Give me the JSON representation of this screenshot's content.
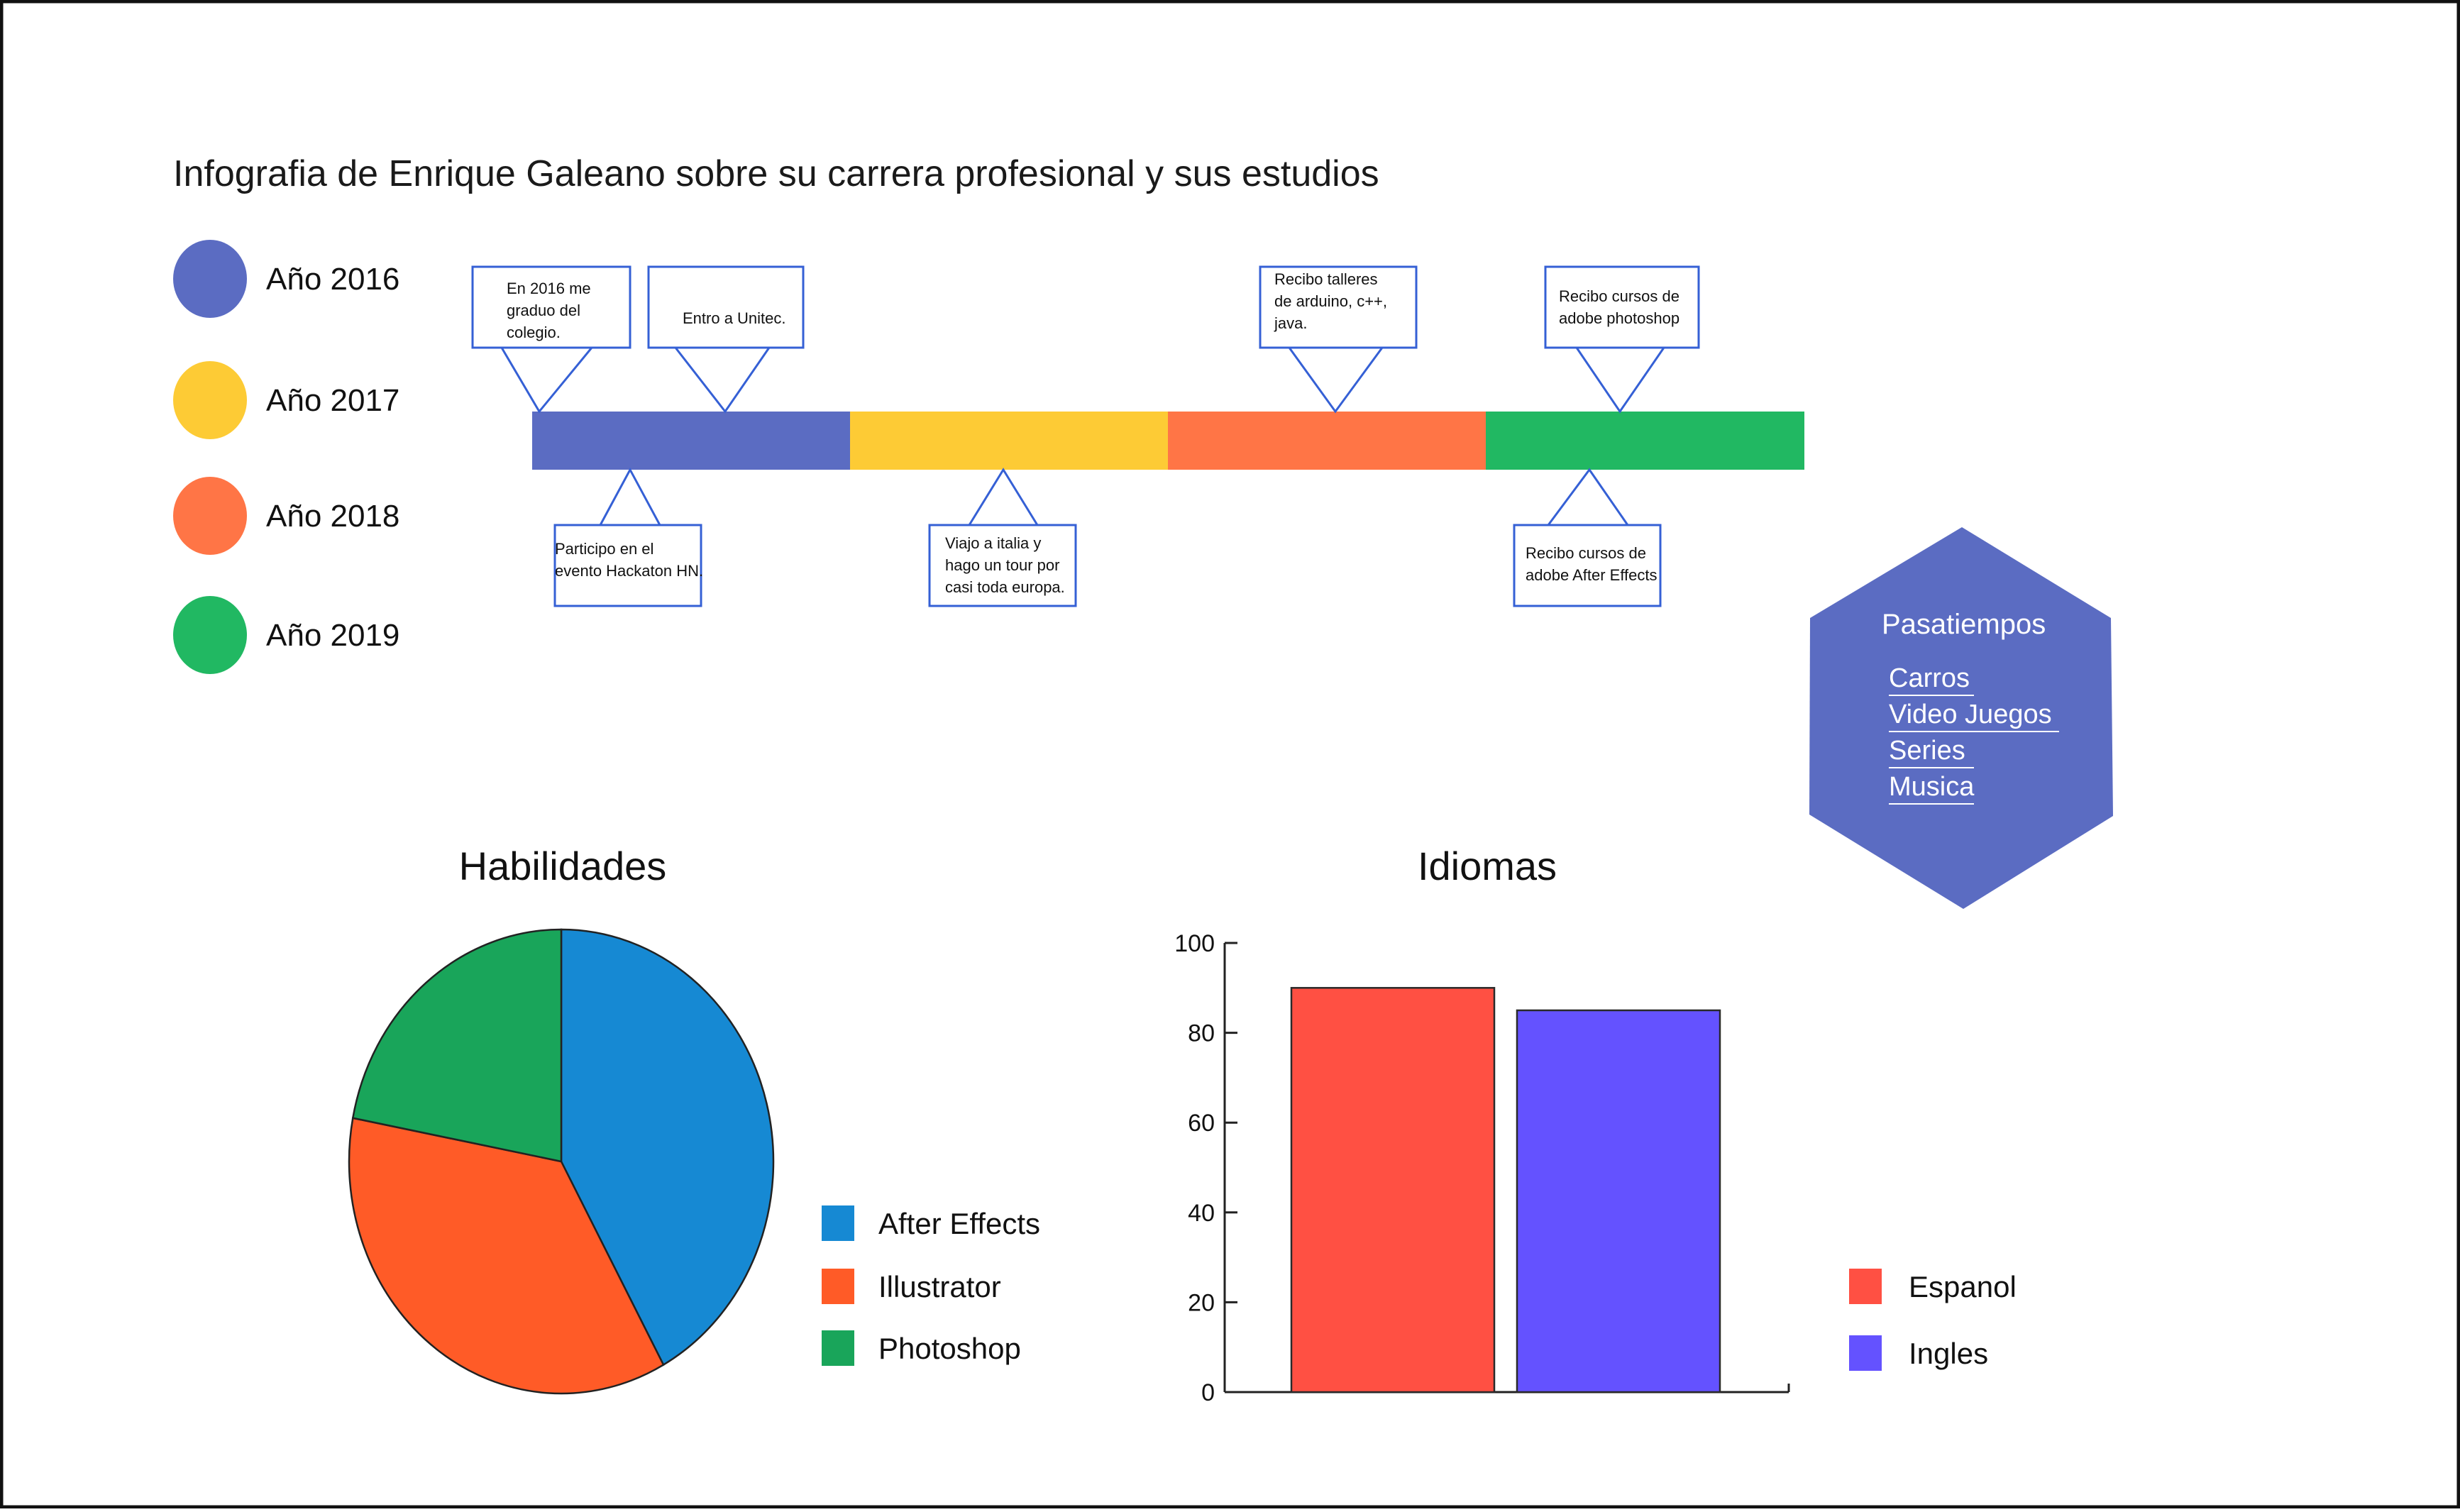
{
  "title": "Infografia de Enrique Galeano sobre su carrera profesional y sus estudios",
  "legend_years": [
    {
      "label": "Año 2016",
      "color": "#5B6CC2"
    },
    {
      "label": "Año 2017",
      "color": "#FDCB35"
    },
    {
      "label": "Año 2018",
      "color": "#FF7546"
    },
    {
      "label": "Año 2019",
      "color": "#21B862"
    }
  ],
  "timeline": {
    "segment_colors": [
      "#5B6CC2",
      "#FDCB35",
      "#FF7546",
      "#21B862"
    ],
    "events_top": [
      {
        "lines": [
          "En 2016 me",
          "graduo del",
          "colegio."
        ]
      },
      {
        "lines": [
          "Entro a Unitec."
        ]
      },
      {
        "lines": [
          "Recibo talleres",
          "de arduino, c++,",
          "java."
        ]
      },
      {
        "lines": [
          "Recibo cursos de",
          "adobe photoshop"
        ]
      }
    ],
    "events_bottom": [
      {
        "lines": [
          "Participo en el",
          "evento Hackaton HN."
        ]
      },
      {
        "lines": [
          "Viajo a italia y",
          "hago un tour por",
          "casi toda europa."
        ]
      },
      {
        "lines": [
          "Recibo cursos de",
          "adobe After Effects"
        ]
      }
    ]
  },
  "hobbies": {
    "title": "Pasatiempos",
    "items": [
      "Carros",
      "Video Juegos",
      "Series",
      "Musica"
    ],
    "color": "#5B6CC2"
  },
  "chart_data": [
    {
      "type": "pie",
      "title": "Habilidades",
      "categories": [
        "After Effects",
        "Illustrator",
        "Photoshop"
      ],
      "values": [
        42,
        36,
        22
      ],
      "colors": [
        "#1689D3",
        "#FF5B27",
        "#19A55A"
      ],
      "legend": "right"
    },
    {
      "type": "bar",
      "title": "Idiomas",
      "categories": [
        "Espanol",
        "Ingles"
      ],
      "values": [
        90,
        85
      ],
      "colors": [
        "#FF5043",
        "#6452FF"
      ],
      "ylim": [
        0,
        100
      ],
      "yticks": [
        "0",
        "20",
        "40",
        "60",
        "80",
        "100"
      ],
      "grid": false,
      "legend": "right"
    }
  ]
}
